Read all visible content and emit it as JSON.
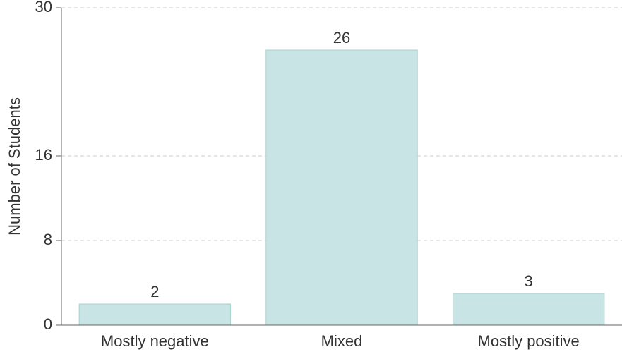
{
  "chart_data": {
    "type": "bar",
    "y_label": "Number of Students",
    "categories": [
      "Mostly negative",
      "Mixed",
      "Mostly positive"
    ],
    "values": [
      2,
      26,
      3
    ],
    "color": "#c9e4e4",
    "ylim": [
      0,
      30
    ],
    "yticks": [
      0,
      8,
      16,
      30
    ],
    "grid": true
  }
}
